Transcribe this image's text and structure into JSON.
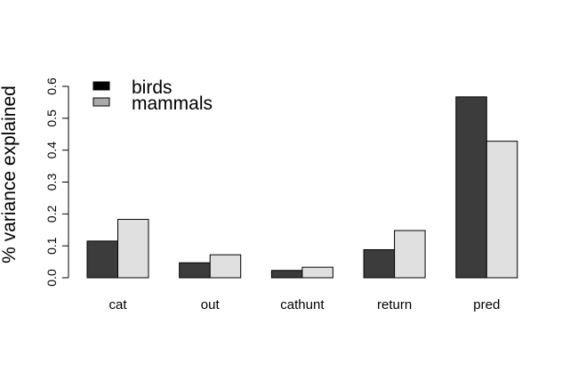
{
  "chart_data": {
    "type": "bar",
    "categories": [
      "cat",
      "out",
      "cathunt",
      "return",
      "pred"
    ],
    "series": [
      {
        "name": "birds",
        "values": [
          0.115,
          0.047,
          0.023,
          0.088,
          0.567
        ],
        "color": "#3c3c3c"
      },
      {
        "name": "mammals",
        "values": [
          0.183,
          0.072,
          0.033,
          0.148,
          0.428
        ],
        "color": "#e0e0e0"
      }
    ],
    "title": "",
    "xlabel": "",
    "ylabel": "% variance explained",
    "ylim": [
      0,
      0.6
    ],
    "yticks": [
      "0.0",
      "0.1",
      "0.2",
      "0.3",
      "0.4",
      "0.5",
      "0.6"
    ],
    "grid": false,
    "legend_position": "top-left",
    "legend_swatch_colors": [
      "#000000",
      "#aaaaaa"
    ]
  }
}
